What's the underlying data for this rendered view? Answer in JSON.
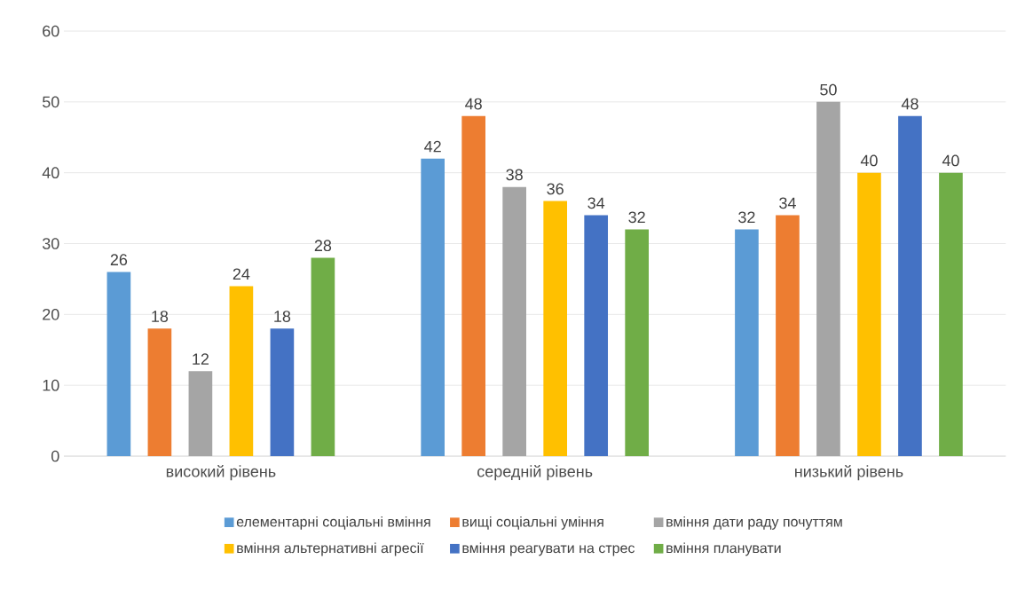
{
  "chart_data": {
    "type": "bar",
    "categories": [
      "високий рівень",
      "середній рівень",
      "низький рівень"
    ],
    "series": [
      {
        "name": "елементарні соціальні вміння",
        "color": "#5b9bd5",
        "values": [
          26,
          42,
          32
        ]
      },
      {
        "name": "вищі соціальні уміння",
        "color": "#ed7d31",
        "values": [
          18,
          48,
          34
        ]
      },
      {
        "name": "вміння дати раду почуттям",
        "color": "#a5a5a5",
        "values": [
          12,
          38,
          50
        ]
      },
      {
        "name": "вміння альтернативні агресії",
        "color": "#ffc000",
        "values": [
          24,
          36,
          40
        ]
      },
      {
        "name": "вміння реагувати на стрес",
        "color": "#4472c4",
        "values": [
          18,
          34,
          48
        ]
      },
      {
        "name": "вміння планувати",
        "color": "#70ad47",
        "values": [
          28,
          32,
          40
        ]
      }
    ],
    "ylim": [
      0,
      60
    ],
    "yticks": [
      0,
      10,
      20,
      30,
      40,
      50,
      60
    ],
    "grid": "y",
    "legend": "bottom",
    "data_labels": true
  }
}
